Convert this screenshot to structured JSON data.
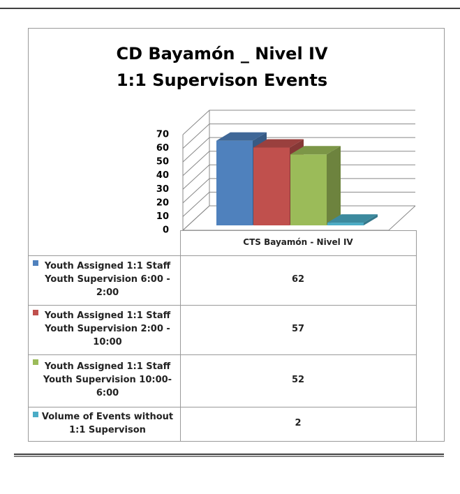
{
  "chart_data": {
    "type": "bar3d",
    "title": "CD Bayamón _ Nivel IV",
    "subtitle": "1:1 Supervison Events",
    "categories": [
      "CTS Bayamón - Nivel IV"
    ],
    "series": [
      {
        "name": "Youth Assigned 1:1 Staff Youth Supervision 6:00 - 2:00",
        "color": "#4f81bd",
        "values": [
          62
        ]
      },
      {
        "name": "Youth Assigned 1:1 Staff Youth Supervision 2:00 - 10:00",
        "color": "#c0504d",
        "values": [
          57
        ]
      },
      {
        "name": "Youth Assigned 1:1 Staff Youth Supervision 10:00-6:00",
        "color": "#9bbb59",
        "values": [
          52
        ]
      },
      {
        "name": "Volume of Events without 1:1 Supervison",
        "color": "#4bacc6",
        "values": [
          2
        ]
      }
    ],
    "ylim": [
      0,
      70
    ],
    "yticks": [
      0,
      10,
      20,
      30,
      40,
      50,
      60,
      70
    ],
    "grid": true
  }
}
